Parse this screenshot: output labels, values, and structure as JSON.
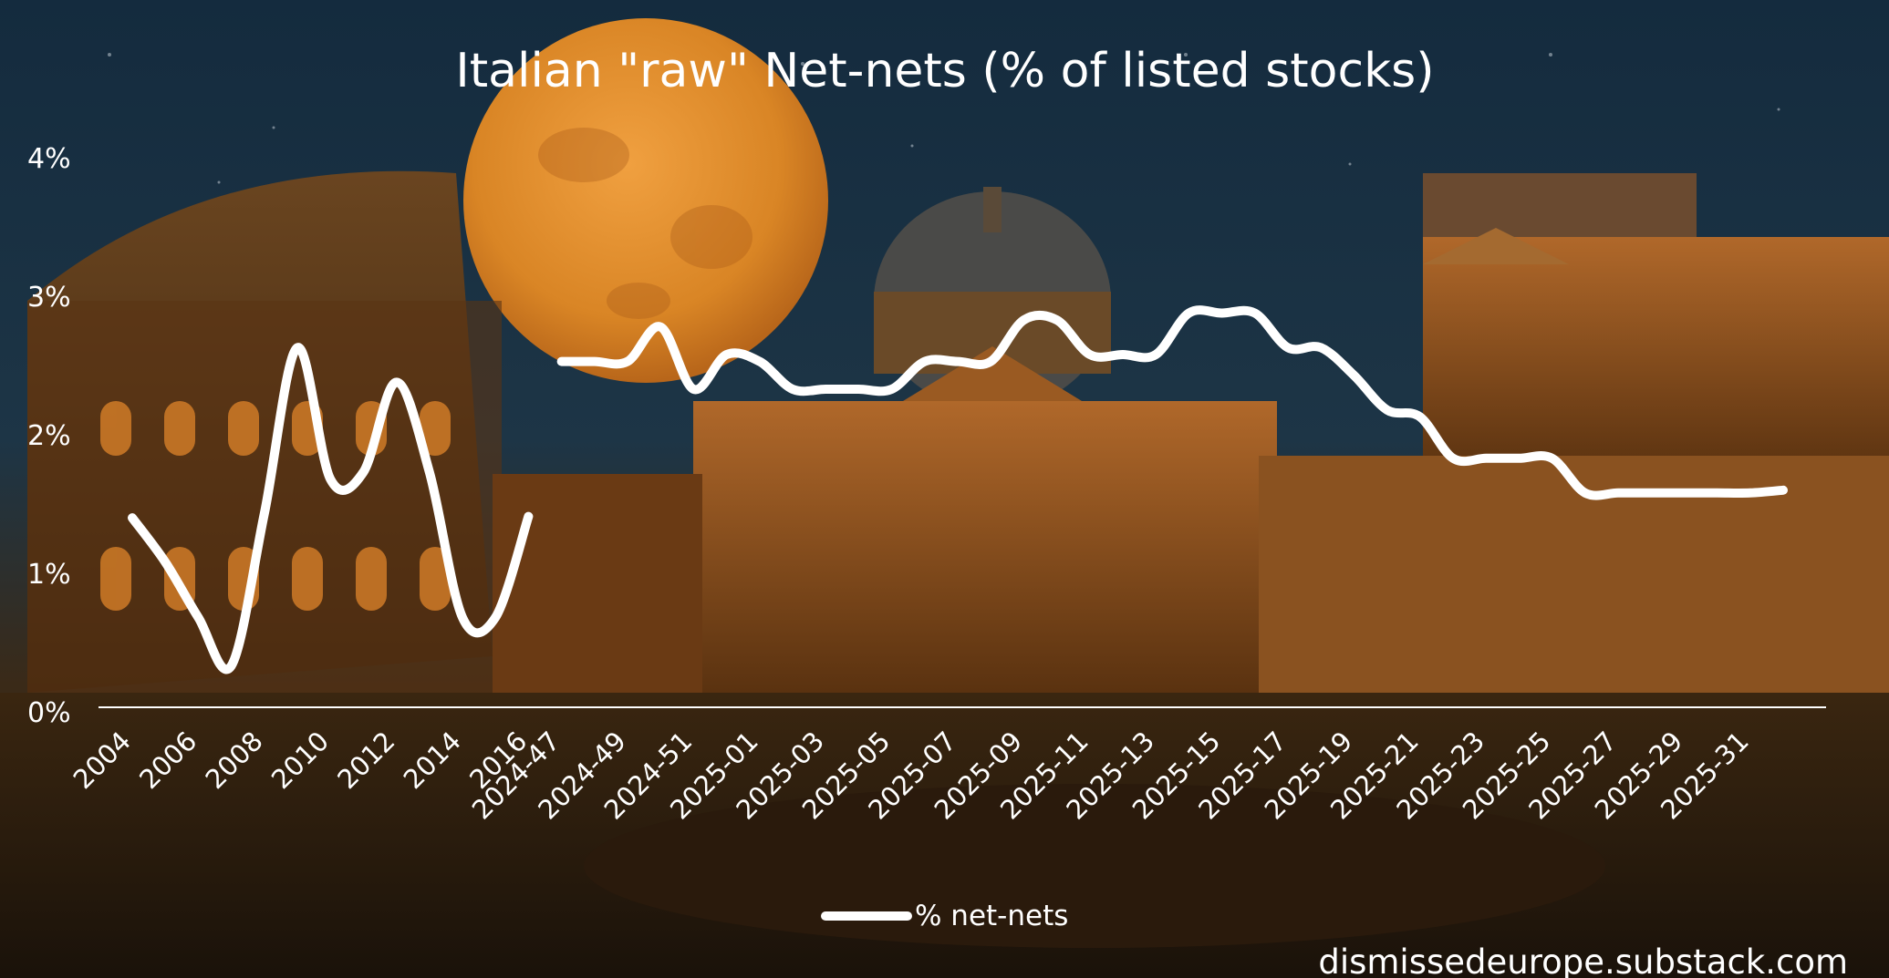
{
  "chart_data": {
    "type": "line",
    "title": "Italian \"raw\" Net-nets (% of listed stocks)",
    "xlabel": "",
    "ylabel": "",
    "ylim": [
      0,
      4
    ],
    "y_ticks": [
      "0%",
      "1%",
      "2%",
      "3%",
      "4%"
    ],
    "grid": false,
    "legend_position": "bottom-center",
    "x_labels": [
      "2004",
      "2006",
      "2008",
      "2010",
      "2012",
      "2014",
      "2016",
      "2024-47",
      "2024-49",
      "2024-51",
      "2025-01",
      "2025-03",
      "2025-05",
      "2025-07",
      "2025-09",
      "2025-11",
      "2025-13",
      "2025-15",
      "2025-17",
      "2025-19",
      "2025-21",
      "2025-23",
      "2025-25",
      "2025-27",
      "2025-29",
      "2025-31"
    ],
    "series": [
      {
        "name": "% net-nets",
        "color": "#ffffff",
        "segments": [
          {
            "x": [
              "2004",
              "2005",
              "2006",
              "2007",
              "2008",
              "2009",
              "2010",
              "2011",
              "2012",
              "2013",
              "2014",
              "2015",
              "2016"
            ],
            "values": [
              1.37,
              1.05,
              0.65,
              0.3,
              1.4,
              2.6,
              1.65,
              1.7,
              2.35,
              1.7,
              0.65,
              0.65,
              1.38
            ]
          },
          {
            "x": [
              "2024-47",
              "2024-48",
              "2024-49",
              "2024-50",
              "2024-51",
              "2024-52",
              "2025-01",
              "2025-02",
              "2025-03",
              "2025-04",
              "2025-05",
              "2025-06",
              "2025-07",
              "2025-08",
              "2025-09",
              "2025-10",
              "2025-11",
              "2025-12",
              "2025-13",
              "2025-14",
              "2025-15",
              "2025-16",
              "2025-17",
              "2025-18",
              "2025-19",
              "2025-20",
              "2025-21",
              "2025-22",
              "2025-23",
              "2025-24",
              "2025-25",
              "2025-26",
              "2025-27",
              "2025-28",
              "2025-29",
              "2025-30",
              "2025-31",
              "2025-32"
            ],
            "values": [
              2.5,
              2.5,
              2.5,
              2.75,
              2.3,
              2.55,
              2.5,
              2.3,
              2.3,
              2.3,
              2.3,
              2.5,
              2.5,
              2.5,
              2.8,
              2.8,
              2.55,
              2.55,
              2.55,
              2.85,
              2.85,
              2.85,
              2.6,
              2.6,
              2.4,
              2.15,
              2.1,
              1.8,
              1.8,
              1.8,
              1.8,
              1.55,
              1.55,
              1.55,
              1.55,
              1.55,
              1.55,
              1.57
            ]
          }
        ]
      }
    ],
    "credit": "dismissedeurope.substack.com"
  }
}
